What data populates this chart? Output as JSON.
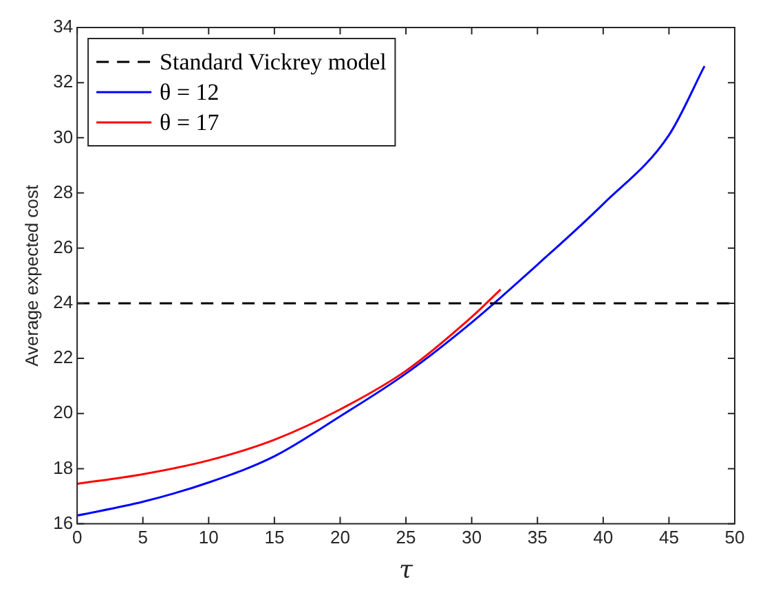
{
  "chart_data": {
    "type": "line",
    "xlabel": "τ",
    "ylabel": "Average expected cost",
    "xlim": [
      0,
      50
    ],
    "xticks": [
      0,
      5,
      10,
      15,
      20,
      25,
      30,
      35,
      40,
      45,
      50
    ],
    "ylim": [
      16,
      34
    ],
    "yticks": [
      16,
      18,
      20,
      22,
      24,
      26,
      28,
      30,
      32,
      34
    ],
    "grid": false,
    "legend": "top left",
    "marker": "none",
    "series": [
      {
        "name": "Standard Vickrey model",
        "color": "#000000",
        "line_style": "dashed",
        "x": [
          0,
          50
        ],
        "values": [
          24,
          24
        ]
      },
      {
        "name": "θ = 12",
        "color": "#0000ff",
        "line_style": "solid",
        "x": [
          0,
          5,
          10,
          15,
          20,
          25,
          30,
          35,
          40,
          45,
          47.7
        ],
        "values": [
          16.3,
          16.8,
          17.5,
          18.45,
          19.9,
          21.45,
          23.3,
          25.4,
          27.6,
          30.1,
          32.6
        ]
      },
      {
        "name": "θ = 17",
        "color": "#ff0000",
        "line_style": "solid",
        "x": [
          0,
          5,
          10,
          15,
          20,
          25,
          30,
          32.2
        ],
        "values": [
          17.45,
          17.8,
          18.3,
          19.05,
          20.15,
          21.55,
          23.5,
          24.5
        ]
      }
    ]
  }
}
